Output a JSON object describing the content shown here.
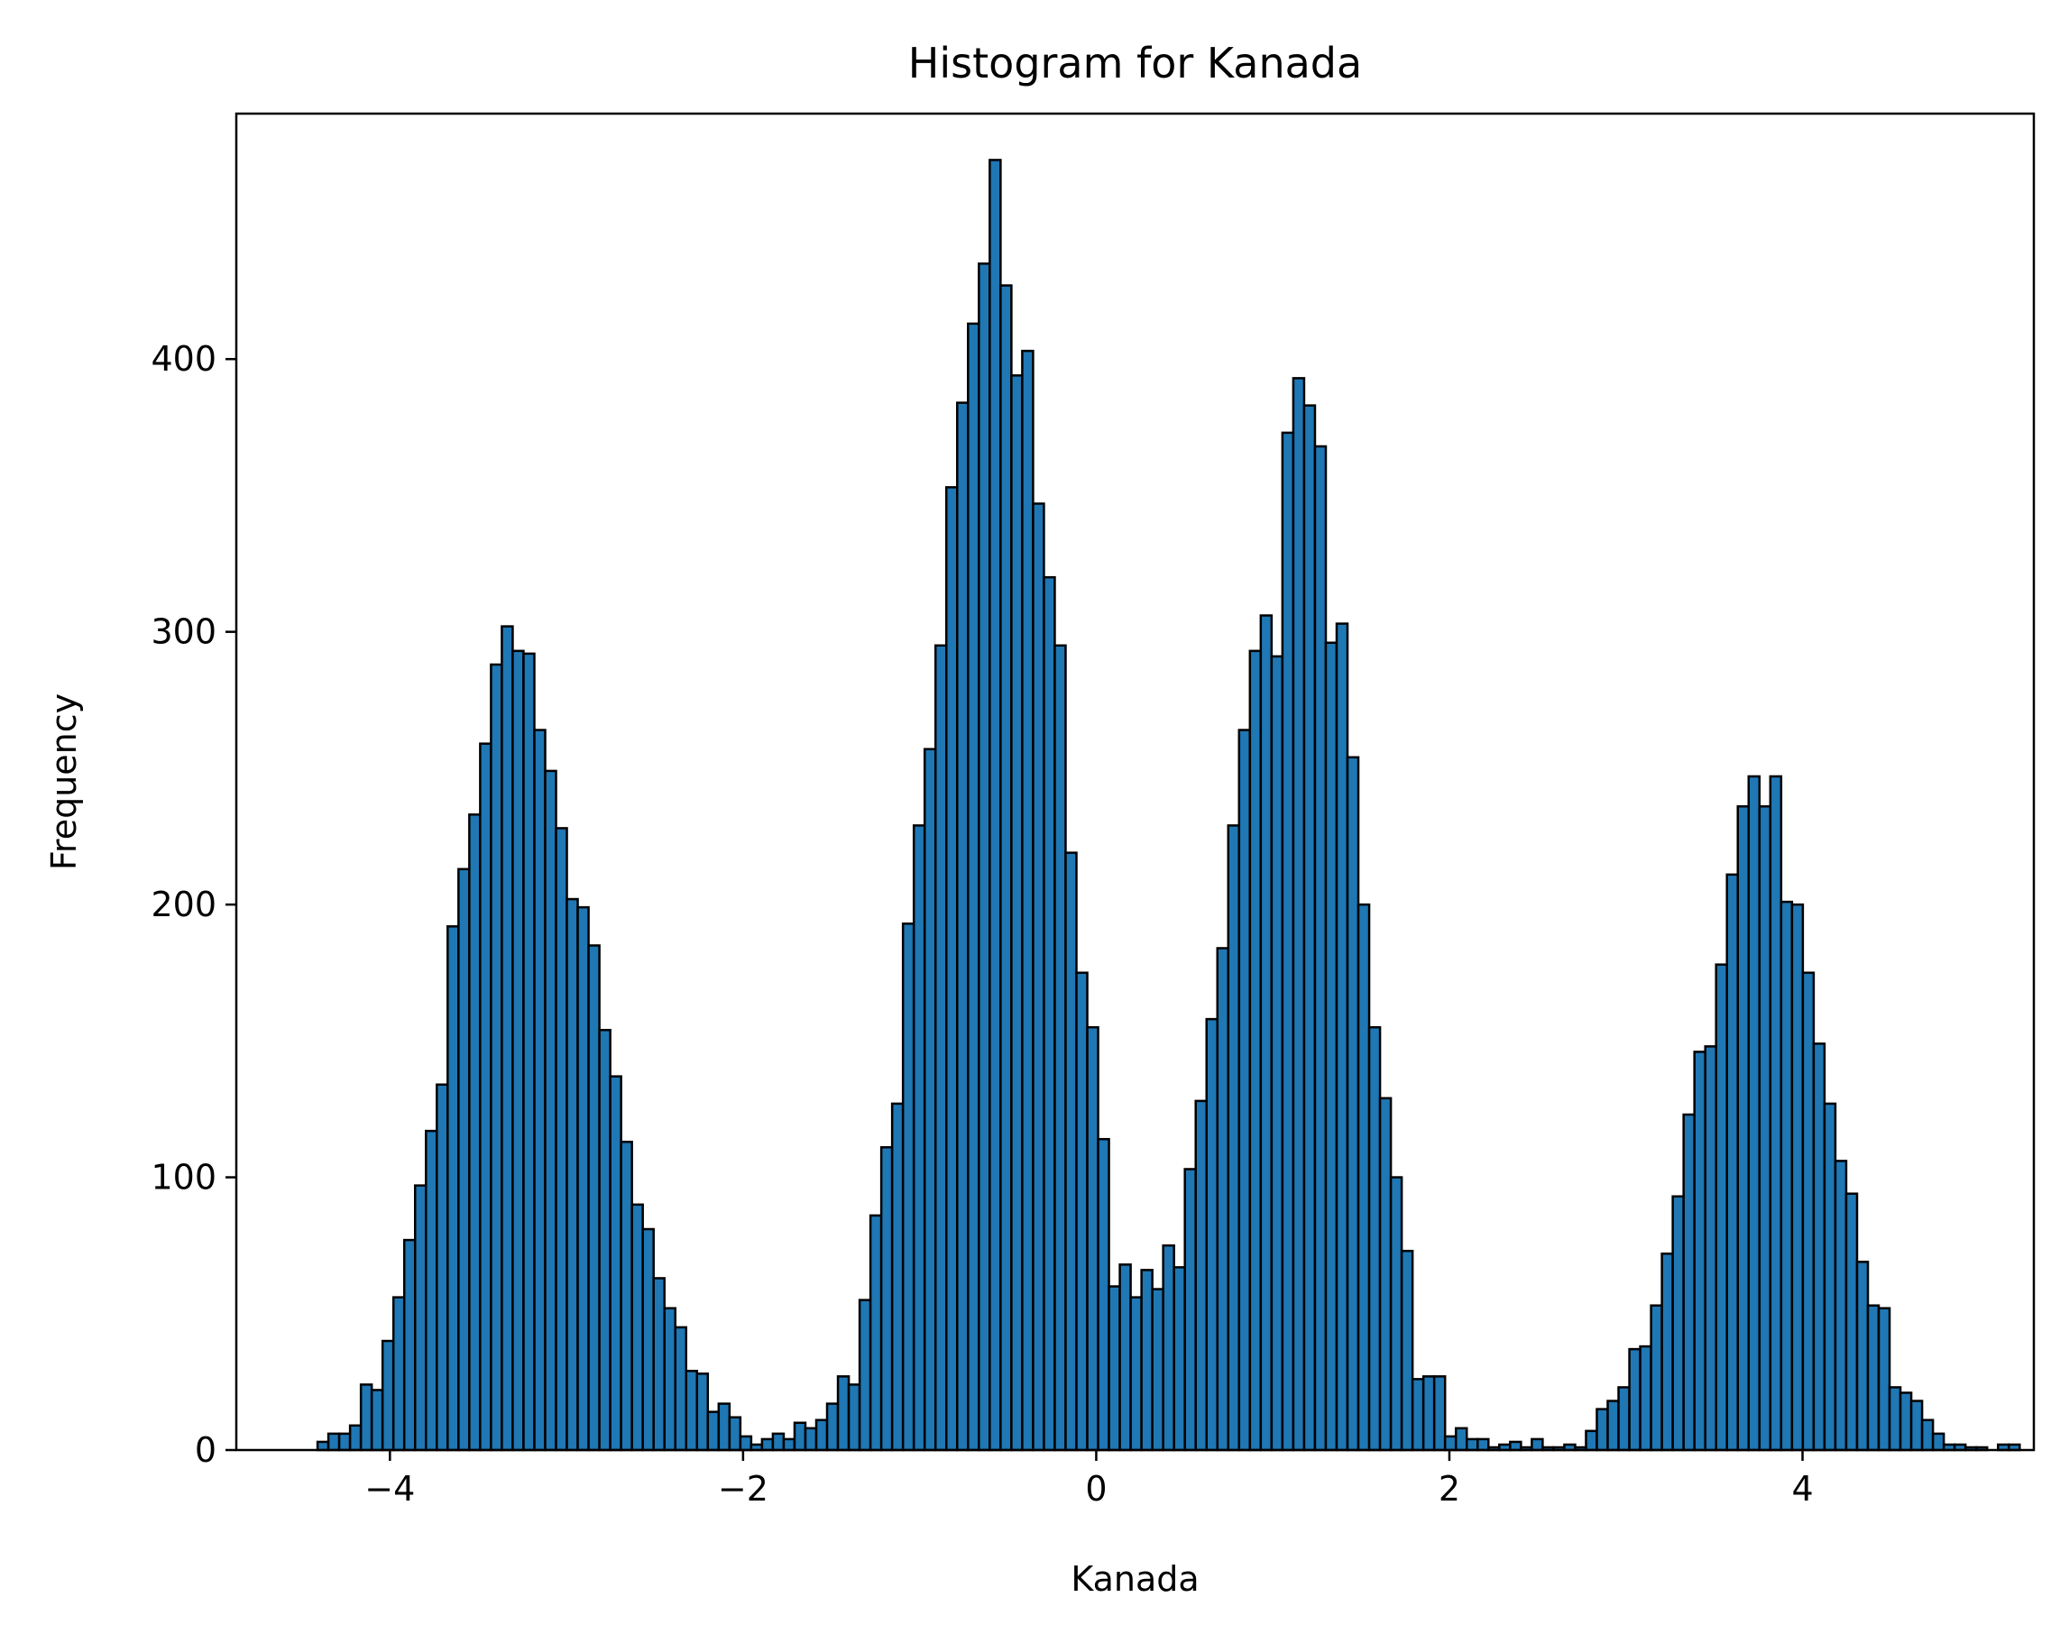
{
  "chart_data": {
    "type": "bar",
    "title": "Histogram for Kanada",
    "xlabel": "Kanada",
    "ylabel": "Frequency",
    "xlim": [
      -4.87,
      5.31
    ],
    "ylim": [
      0,
      490
    ],
    "xticks": [
      -4,
      -2,
      0,
      2,
      4
    ],
    "yticks": [
      0,
      100,
      200,
      300,
      400
    ],
    "xtick_labels": [
      "−4",
      "−2",
      "0",
      "2",
      "4"
    ],
    "ytick_labels": [
      "0",
      "100",
      "200",
      "300",
      "400"
    ],
    "bin_start": -4.41,
    "bin_width": 0.0614,
    "values": [
      3,
      6,
      6,
      9,
      24,
      22,
      40,
      56,
      77,
      97,
      117,
      134,
      192,
      213,
      233,
      259,
      288,
      302,
      293,
      292,
      264,
      249,
      228,
      202,
      199,
      185,
      154,
      137,
      113,
      90,
      81,
      63,
      52,
      45,
      29,
      28,
      14,
      17,
      12,
      5,
      2,
      4,
      6,
      4,
      10,
      8,
      11,
      17,
      27,
      24,
      55,
      86,
      111,
      127,
      193,
      229,
      257,
      295,
      353,
      384,
      413,
      435,
      473,
      427,
      394,
      403,
      347,
      320,
      295,
      219,
      175,
      155,
      114,
      60,
      68,
      56,
      66,
      59,
      75,
      67,
      103,
      128,
      158,
      184,
      229,
      264,
      293,
      306,
      291,
      373,
      393,
      383,
      368,
      296,
      303,
      254,
      200,
      155,
      129,
      100,
      73,
      26,
      27,
      27,
      5,
      8,
      4,
      4,
      1,
      2,
      3,
      1,
      4,
      1,
      1,
      2,
      1,
      7,
      15,
      18,
      23,
      37,
      38,
      53,
      72,
      93,
      123,
      146,
      148,
      178,
      211,
      236,
      247,
      236,
      247,
      201,
      200,
      175,
      149,
      127,
      106,
      94,
      69,
      53,
      52,
      23,
      21,
      18,
      11,
      6,
      2,
      2,
      1,
      1,
      0,
      2,
      2
    ],
    "bar_color": "#1f77b4",
    "edge_color": "#000000",
    "grid": false
  }
}
